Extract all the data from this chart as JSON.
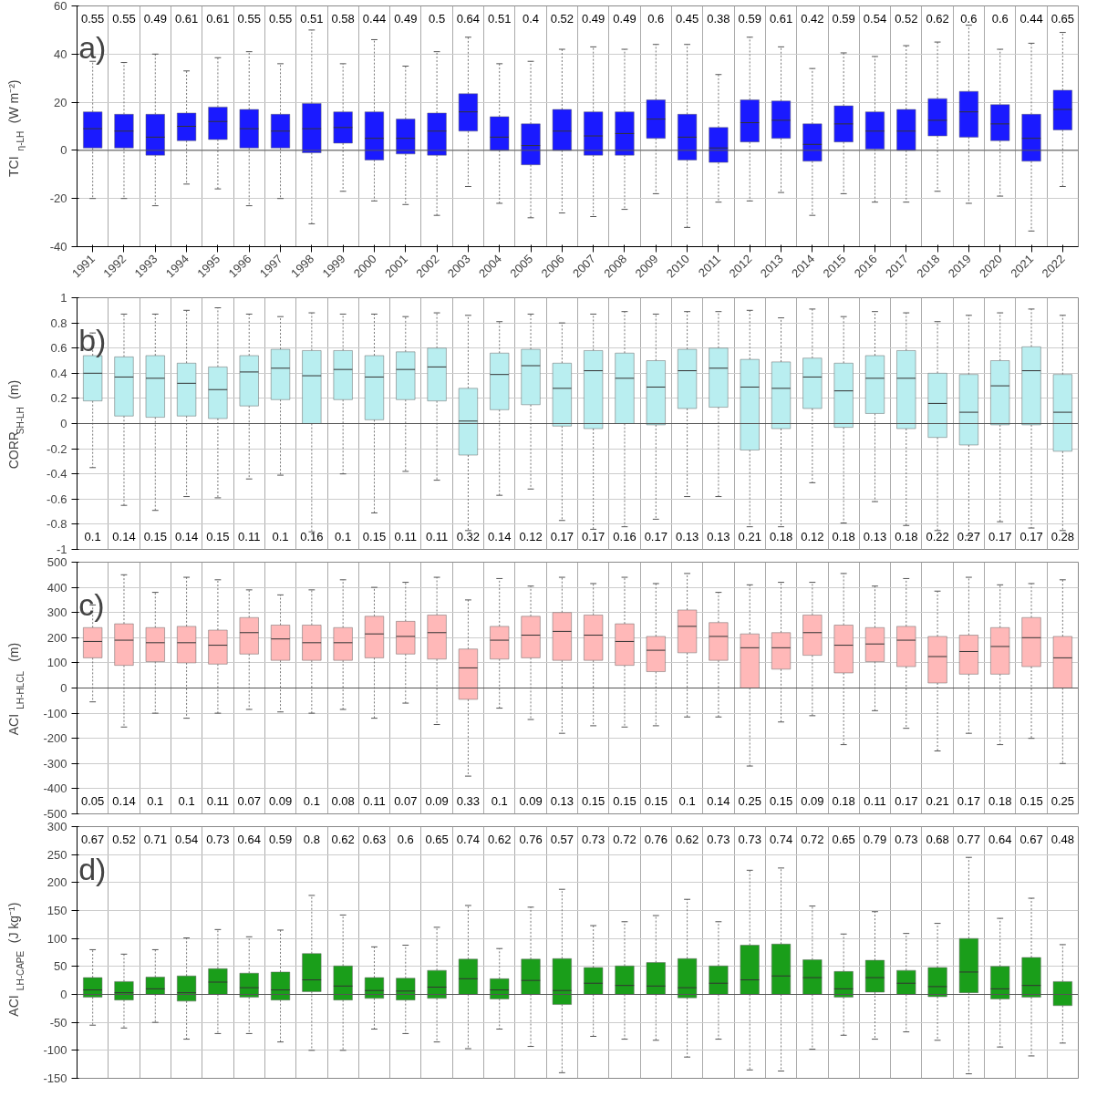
{
  "chart_data": [
    {
      "type": "box",
      "title": "a)",
      "ylabel": "TCI$_{η-LH}$ (W m⁻²)",
      "categories": [
        "1991",
        "1992",
        "1993",
        "1994",
        "1995",
        "1996",
        "1997",
        "1998",
        "1999",
        "2000",
        "2001",
        "2002",
        "2003",
        "2004",
        "2005",
        "2006",
        "2007",
        "2008",
        "2009",
        "2010",
        "2011",
        "2012",
        "2013",
        "2014",
        "2015",
        "2016",
        "2017",
        "2018",
        "2019",
        "2020",
        "2021",
        "2022"
      ],
      "ylim": [
        -40,
        60
      ],
      "yticks": [
        -40,
        -20,
        0,
        20,
        40,
        60
      ],
      "grid": true,
      "ref_lines": [
        {
          "axis": "y",
          "value": 0,
          "color": "#555555"
        }
      ],
      "series": [
        {
          "color": "#1a1aff",
          "boxes": [
            {
              "low": -20,
              "q1": 1,
              "median": 9,
              "q3": 16,
              "high": 37
            },
            {
              "low": -20,
              "q1": 1,
              "median": 8,
              "q3": 15,
              "high": 36.5
            },
            {
              "low": -23,
              "q1": -2,
              "median": 5.5,
              "q3": 15,
              "high": 40
            },
            {
              "low": -14,
              "q1": 4,
              "median": 10,
              "q3": 15.5,
              "high": 33
            },
            {
              "low": -16,
              "q1": 4.5,
              "median": 12,
              "q3": 18,
              "high": 38.5
            },
            {
              "low": -23,
              "q1": 1,
              "median": 9,
              "q3": 17,
              "high": 41
            },
            {
              "low": -20,
              "q1": 1,
              "median": 8,
              "q3": 15,
              "high": 36
            },
            {
              "low": -30.5,
              "q1": -1,
              "median": 9,
              "q3": 19.5,
              "high": 50
            },
            {
              "low": -17,
              "q1": 3,
              "median": 9.5,
              "q3": 16,
              "high": 36
            },
            {
              "low": -21,
              "q1": -4,
              "median": 5,
              "q3": 16,
              "high": 46
            },
            {
              "low": -22.5,
              "q1": -1.5,
              "median": 5,
              "q3": 13,
              "high": 35
            },
            {
              "low": -27,
              "q1": -2,
              "median": 8,
              "q3": 15.5,
              "high": 41
            },
            {
              "low": -15,
              "q1": 8,
              "median": 16,
              "q3": 23.5,
              "high": 47
            },
            {
              "low": -22,
              "q1": 0,
              "median": 5.5,
              "q3": 14,
              "high": 36
            },
            {
              "low": -28,
              "q1": -6,
              "median": 2,
              "q3": 11,
              "high": 37
            },
            {
              "low": -26,
              "q1": 0,
              "median": 8,
              "q3": 17,
              "high": 42
            },
            {
              "low": -27.5,
              "q1": -2,
              "median": 6,
              "q3": 16,
              "high": 43
            },
            {
              "low": -24.5,
              "q1": -2,
              "median": 7,
              "q3": 16,
              "high": 42
            },
            {
              "low": -18,
              "q1": 5,
              "median": 13,
              "q3": 21,
              "high": 44
            },
            {
              "low": -32,
              "q1": -4,
              "median": 5.5,
              "q3": 15,
              "high": 44
            },
            {
              "low": -21.5,
              "q1": -5,
              "median": 1,
              "q3": 9.5,
              "high": 31.5
            },
            {
              "low": -21,
              "q1": 3.5,
              "median": 11.5,
              "q3": 21,
              "high": 47
            },
            {
              "low": -17.5,
              "q1": 5,
              "median": 12.5,
              "q3": 20.5,
              "high": 43
            },
            {
              "low": -27,
              "q1": -4.5,
              "median": 2.5,
              "q3": 11,
              "high": 34
            },
            {
              "low": -18,
              "q1": 3.5,
              "median": 11,
              "q3": 18.5,
              "high": 40.5
            },
            {
              "low": -21.5,
              "q1": 0.5,
              "median": 8,
              "q3": 16,
              "high": 39
            },
            {
              "low": -21.5,
              "q1": 0,
              "median": 8,
              "q3": 17,
              "high": 43.5
            },
            {
              "low": -17,
              "q1": 6,
              "median": 12.5,
              "q3": 21.5,
              "high": 45
            },
            {
              "low": -22,
              "q1": 5.5,
              "median": 16,
              "q3": 24.5,
              "high": 52
            },
            {
              "low": -19,
              "q1": 4,
              "median": 11,
              "q3": 19,
              "high": 42
            },
            {
              "low": -33.5,
              "q1": -4.5,
              "median": 5,
              "q3": 15,
              "high": 44.5
            },
            {
              "low": -15,
              "q1": 8.5,
              "median": 17,
              "q3": 25,
              "high": 49
            }
          ]
        }
      ],
      "annotations": [
        "0.55",
        "0.55",
        "0.49",
        "0.61",
        "0.61",
        "0.55",
        "0.55",
        "0.51",
        "0.58",
        "0.44",
        "0.49",
        "0.5",
        "0.64",
        "0.51",
        "0.4",
        "0.52",
        "0.49",
        "0.49",
        "0.6",
        "0.45",
        "0.38",
        "0.59",
        "0.61",
        "0.42",
        "0.59",
        "0.54",
        "0.52",
        "0.62",
        "0.6",
        "0.6",
        "0.44",
        "0.65"
      ]
    },
    {
      "type": "box",
      "title": "b)",
      "ylabel": "CORR$_{SH-LH}$ (m)",
      "categories": [
        "1991",
        "1992",
        "1993",
        "1994",
        "1995",
        "1996",
        "1997",
        "1998",
        "1999",
        "2000",
        "2001",
        "2002",
        "2003",
        "2004",
        "2005",
        "2006",
        "2007",
        "2008",
        "2009",
        "2010",
        "2011",
        "2012",
        "2013",
        "2014",
        "2015",
        "2016",
        "2017",
        "2018",
        "2019",
        "2020",
        "2021",
        "2022"
      ],
      "ylim": [
        -1,
        1
      ],
      "yticks": [
        -1,
        -0.8,
        -0.6,
        -0.4,
        -0.2,
        0,
        0.2,
        0.4,
        0.6,
        0.8,
        1
      ],
      "grid": true,
      "tick_labels": "y",
      "ref_lines": [
        {
          "axis": "y",
          "value": 0,
          "color": "#555555"
        }
      ],
      "series": [
        {
          "color": "#b9eef0",
          "boxes": [
            {
              "low": -0.35,
              "q1": 0.18,
              "median": 0.4,
              "q3": 0.54,
              "high": 0.72
            },
            {
              "low": -0.65,
              "q1": 0.06,
              "median": 0.37,
              "q3": 0.53,
              "high": 0.87
            },
            {
              "low": -0.69,
              "q1": 0.05,
              "median": 0.36,
              "q3": 0.54,
              "high": 0.87
            },
            {
              "low": -0.58,
              "q1": 0.06,
              "median": 0.32,
              "q3": 0.48,
              "high": 0.9
            },
            {
              "low": -0.59,
              "q1": 0.04,
              "median": 0.27,
              "q3": 0.45,
              "high": 0.92
            },
            {
              "low": -0.44,
              "q1": 0.14,
              "median": 0.41,
              "q3": 0.54,
              "high": 0.87
            },
            {
              "low": -0.41,
              "q1": 0.19,
              "median": 0.44,
              "q3": 0.59,
              "high": 0.85
            },
            {
              "low": -0.86,
              "q1": 0.0,
              "median": 0.38,
              "q3": 0.58,
              "high": 0.88
            },
            {
              "low": -0.4,
              "q1": 0.19,
              "median": 0.43,
              "q3": 0.58,
              "high": 0.87
            },
            {
              "low": -0.71,
              "q1": 0.03,
              "median": 0.37,
              "q3": 0.54,
              "high": 0.87
            },
            {
              "low": -0.38,
              "q1": 0.19,
              "median": 0.43,
              "q3": 0.57,
              "high": 0.85
            },
            {
              "low": -0.45,
              "q1": 0.18,
              "median": 0.45,
              "q3": 0.6,
              "high": 0.88
            },
            {
              "low": -0.85,
              "q1": -0.25,
              "median": 0.02,
              "q3": 0.28,
              "high": 0.86
            },
            {
              "low": -0.57,
              "q1": 0.11,
              "median": 0.39,
              "q3": 0.56,
              "high": 0.81
            },
            {
              "low": -0.52,
              "q1": 0.15,
              "median": 0.46,
              "q3": 0.59,
              "high": 0.87
            },
            {
              "low": -0.77,
              "q1": -0.02,
              "median": 0.28,
              "q3": 0.48,
              "high": 0.8
            },
            {
              "low": -0.84,
              "q1": -0.04,
              "median": 0.42,
              "q3": 0.58,
              "high": 0.87
            },
            {
              "low": -0.82,
              "q1": 0.0,
              "median": 0.36,
              "q3": 0.56,
              "high": 0.89
            },
            {
              "low": -0.76,
              "q1": -0.01,
              "median": 0.29,
              "q3": 0.5,
              "high": 0.87
            },
            {
              "low": -0.58,
              "q1": 0.12,
              "median": 0.42,
              "q3": 0.59,
              "high": 0.89
            },
            {
              "low": -0.58,
              "q1": 0.13,
              "median": 0.44,
              "q3": 0.6,
              "high": 0.89
            },
            {
              "low": -0.82,
              "q1": -0.21,
              "median": 0.29,
              "q3": 0.51,
              "high": 0.9
            },
            {
              "low": -0.82,
              "q1": -0.04,
              "median": 0.28,
              "q3": 0.49,
              "high": 0.84
            },
            {
              "low": -0.47,
              "q1": 0.12,
              "median": 0.37,
              "q3": 0.52,
              "high": 0.91
            },
            {
              "low": -0.79,
              "q1": -0.03,
              "median": 0.26,
              "q3": 0.48,
              "high": 0.85
            },
            {
              "low": -0.62,
              "q1": 0.08,
              "median": 0.36,
              "q3": 0.54,
              "high": 0.89
            },
            {
              "low": -0.81,
              "q1": -0.04,
              "median": 0.36,
              "q3": 0.58,
              "high": 0.88
            },
            {
              "low": -0.85,
              "q1": -0.11,
              "median": 0.16,
              "q3": 0.4,
              "high": 0.81
            },
            {
              "low": -0.89,
              "q1": -0.17,
              "median": 0.09,
              "q3": 0.39,
              "high": 0.86
            },
            {
              "low": -0.78,
              "q1": -0.01,
              "median": 0.3,
              "q3": 0.5,
              "high": 0.88
            },
            {
              "low": -0.83,
              "q1": -0.01,
              "median": 0.42,
              "q3": 0.61,
              "high": 0.91
            },
            {
              "low": -0.85,
              "q1": -0.22,
              "median": 0.09,
              "q3": 0.39,
              "high": 0.86
            }
          ]
        }
      ],
      "annotations": [
        "0.1",
        "0.14",
        "0.15",
        "0.14",
        "0.15",
        "0.11",
        "0.1",
        "0.16",
        "0.1",
        "0.15",
        "0.11",
        "0.11",
        "0.32",
        "0.14",
        "0.12",
        "0.17",
        "0.17",
        "0.16",
        "0.17",
        "0.13",
        "0.13",
        "0.21",
        "0.18",
        "0.12",
        "0.18",
        "0.13",
        "0.18",
        "0.22",
        "0.27",
        "0.17",
        "0.17",
        "0.28"
      ]
    },
    {
      "type": "box",
      "title": "c)",
      "ylabel": "ACI$_{LH-HLCL}$ (m)",
      "categories": [
        "1991",
        "1992",
        "1993",
        "1994",
        "1995",
        "1996",
        "1997",
        "1998",
        "1999",
        "2000",
        "2001",
        "2002",
        "2003",
        "2004",
        "2005",
        "2006",
        "2007",
        "2008",
        "2009",
        "2010",
        "2011",
        "2012",
        "2013",
        "2014",
        "2015",
        "2016",
        "2017",
        "2018",
        "2019",
        "2020",
        "2021",
        "2022"
      ],
      "ylim": [
        -500,
        500
      ],
      "yticks": [
        -500,
        -400,
        -300,
        -200,
        -100,
        0,
        100,
        200,
        300,
        400,
        500
      ],
      "grid": true,
      "tick_labels": "y",
      "ref_lines": [
        {
          "axis": "y",
          "value": 0,
          "color": "#555555"
        }
      ],
      "series": [
        {
          "color": "#ffb8b8",
          "boxes": [
            {
              "low": -55,
              "q1": 120,
              "median": 185,
              "q3": 240,
              "high": 330
            },
            {
              "low": -155,
              "q1": 90,
              "median": 190,
              "q3": 255,
              "high": 450
            },
            {
              "low": -100,
              "q1": 105,
              "median": 180,
              "q3": 240,
              "high": 380
            },
            {
              "low": -120,
              "q1": 100,
              "median": 180,
              "q3": 245,
              "high": 440
            },
            {
              "low": -100,
              "q1": 95,
              "median": 170,
              "q3": 230,
              "high": 430
            },
            {
              "low": -85,
              "q1": 135,
              "median": 220,
              "q3": 280,
              "high": 390
            },
            {
              "low": -95,
              "q1": 110,
              "median": 195,
              "q3": 250,
              "high": 370
            },
            {
              "low": -100,
              "q1": 110,
              "median": 180,
              "q3": 250,
              "high": 390
            },
            {
              "low": -85,
              "q1": 110,
              "median": 180,
              "q3": 240,
              "high": 430
            },
            {
              "low": -120,
              "q1": 120,
              "median": 215,
              "q3": 285,
              "high": 400
            },
            {
              "low": -60,
              "q1": 135,
              "median": 205,
              "q3": 265,
              "high": 420
            },
            {
              "low": -145,
              "q1": 115,
              "median": 220,
              "q3": 290,
              "high": 440
            },
            {
              "low": -350,
              "q1": -45,
              "median": 80,
              "q3": 155,
              "high": 350
            },
            {
              "low": -80,
              "q1": 115,
              "median": 190,
              "q3": 245,
              "high": 435
            },
            {
              "low": -125,
              "q1": 120,
              "median": 210,
              "q3": 285,
              "high": 405
            },
            {
              "low": -180,
              "q1": 110,
              "median": 225,
              "q3": 300,
              "high": 440
            },
            {
              "low": -150,
              "q1": 110,
              "median": 210,
              "q3": 290,
              "high": 415
            },
            {
              "low": -155,
              "q1": 90,
              "median": 185,
              "q3": 255,
              "high": 440
            },
            {
              "low": -150,
              "q1": 65,
              "median": 150,
              "q3": 205,
              "high": 415
            },
            {
              "low": -115,
              "q1": 140,
              "median": 245,
              "q3": 310,
              "high": 455
            },
            {
              "low": -115,
              "q1": 110,
              "median": 205,
              "q3": 260,
              "high": 380
            },
            {
              "low": -310,
              "q1": 0,
              "median": 160,
              "q3": 215,
              "high": 410
            },
            {
              "low": -135,
              "q1": 75,
              "median": 160,
              "q3": 220,
              "high": 420
            },
            {
              "low": -110,
              "q1": 130,
              "median": 220,
              "q3": 290,
              "high": 420
            },
            {
              "low": -225,
              "q1": 60,
              "median": 170,
              "q3": 250,
              "high": 455
            },
            {
              "low": -90,
              "q1": 105,
              "median": 175,
              "q3": 240,
              "high": 405
            },
            {
              "low": -160,
              "q1": 85,
              "median": 190,
              "q3": 245,
              "high": 435
            },
            {
              "low": -250,
              "q1": 20,
              "median": 125,
              "q3": 205,
              "high": 385
            },
            {
              "low": -180,
              "q1": 55,
              "median": 145,
              "q3": 210,
              "high": 440
            },
            {
              "low": -225,
              "q1": 55,
              "median": 165,
              "q3": 240,
              "high": 410
            },
            {
              "low": -200,
              "q1": 85,
              "median": 200,
              "q3": 280,
              "high": 415
            },
            {
              "low": -300,
              "q1": 0,
              "median": 120,
              "q3": 205,
              "high": 430
            }
          ]
        }
      ],
      "annotations": [
        "0.05",
        "0.14",
        "0.1",
        "0.1",
        "0.11",
        "0.07",
        "0.09",
        "0.1",
        "0.08",
        "0.11",
        "0.07",
        "0.09",
        "0.33",
        "0.1",
        "0.09",
        "0.13",
        "0.15",
        "0.15",
        "0.15",
        "0.1",
        "0.14",
        "0.25",
        "0.15",
        "0.09",
        "0.18",
        "0.11",
        "0.17",
        "0.21",
        "0.17",
        "0.18",
        "0.15",
        "0.25"
      ]
    },
    {
      "type": "box",
      "title": "d)",
      "ylabel": "ACI$_{LH-CAPE}$ (J kg⁻¹)",
      "categories": [
        "1991",
        "1992",
        "1993",
        "1994",
        "1995",
        "1996",
        "1997",
        "1998",
        "1999",
        "2000",
        "2001",
        "2002",
        "2003",
        "2004",
        "2005",
        "2006",
        "2007",
        "2008",
        "2009",
        "2010",
        "2011",
        "2012",
        "2013",
        "2014",
        "2015",
        "2016",
        "2017",
        "2018",
        "2019",
        "2020",
        "2021",
        "2022"
      ],
      "ylim": [
        -150,
        300
      ],
      "yticks": [
        -150,
        -100,
        -50,
        0,
        50,
        100,
        150,
        200,
        250,
        300
      ],
      "grid": true,
      "tick_labels": "y",
      "ref_lines": [
        {
          "axis": "y",
          "value": 0,
          "color": "#555555"
        }
      ],
      "series": [
        {
          "color": "#1a9e1a",
          "boxes": [
            {
              "low": -55,
              "q1": -5,
              "median": 8,
              "q3": 30,
              "high": 80
            },
            {
              "low": -60,
              "q1": -10,
              "median": 3,
              "q3": 23,
              "high": 72
            },
            {
              "low": -50,
              "q1": 0,
              "median": 10,
              "q3": 31,
              "high": 80
            },
            {
              "low": -80,
              "q1": -12,
              "median": 3,
              "q3": 33,
              "high": 101
            },
            {
              "low": -70,
              "q1": 0,
              "median": 22,
              "q3": 46,
              "high": 116
            },
            {
              "low": -70,
              "q1": -5,
              "median": 12,
              "q3": 38,
              "high": 103
            },
            {
              "low": -85,
              "q1": -10,
              "median": 8,
              "q3": 40,
              "high": 115
            },
            {
              "low": -100,
              "q1": 5,
              "median": 26,
              "q3": 73,
              "high": 177
            },
            {
              "low": -100,
              "q1": -10,
              "median": 15,
              "q3": 51,
              "high": 142
            },
            {
              "low": -62,
              "q1": -7,
              "median": 7,
              "q3": 30,
              "high": 85
            },
            {
              "low": -70,
              "q1": -10,
              "median": 6,
              "q3": 29,
              "high": 88
            },
            {
              "low": -85,
              "q1": -7,
              "median": 13,
              "q3": 43,
              "high": 120
            },
            {
              "low": -97,
              "q1": 0,
              "median": 28,
              "q3": 63,
              "high": 159
            },
            {
              "low": -62,
              "q1": -8,
              "median": 8,
              "q3": 28,
              "high": 82
            },
            {
              "low": -93,
              "q1": 0,
              "median": 25,
              "q3": 63,
              "high": 156
            },
            {
              "low": -140,
              "q1": -18,
              "median": 7,
              "q3": 64,
              "high": 188
            },
            {
              "low": -75,
              "q1": 0,
              "median": 20,
              "q3": 48,
              "high": 123
            },
            {
              "low": -80,
              "q1": 0,
              "median": 16,
              "q3": 51,
              "high": 130
            },
            {
              "low": -82,
              "q1": 0,
              "median": 15,
              "q3": 57,
              "high": 141
            },
            {
              "low": -112,
              "q1": -6,
              "median": 12,
              "q3": 64,
              "high": 170
            },
            {
              "low": -80,
              "q1": 0,
              "median": 20,
              "q3": 51,
              "high": 130
            },
            {
              "low": -135,
              "q1": 0,
              "median": 26,
              "q3": 88,
              "high": 222
            },
            {
              "low": -137,
              "q1": 0,
              "median": 33,
              "q3": 90,
              "high": 226
            },
            {
              "low": -98,
              "q1": 0,
              "median": 30,
              "q3": 62,
              "high": 158
            },
            {
              "low": -73,
              "q1": -5,
              "median": 10,
              "q3": 41,
              "high": 108
            },
            {
              "low": -80,
              "q1": 4,
              "median": 30,
              "q3": 61,
              "high": 148
            },
            {
              "low": -67,
              "q1": 0,
              "median": 20,
              "q3": 43,
              "high": 109
            },
            {
              "low": -82,
              "q1": -4,
              "median": 14,
              "q3": 48,
              "high": 127
            },
            {
              "low": -142,
              "q1": 3,
              "median": 40,
              "q3": 100,
              "high": 245
            },
            {
              "low": -94,
              "q1": -8,
              "median": 10,
              "q3": 50,
              "high": 136
            },
            {
              "low": -110,
              "q1": -5,
              "median": 16,
              "q3": 66,
              "high": 172
            },
            {
              "low": -87,
              "q1": -20,
              "median": 0,
              "q3": 23,
              "high": 89
            }
          ]
        }
      ],
      "annotations": [
        "0.67",
        "0.52",
        "0.71",
        "0.54",
        "0.73",
        "0.64",
        "0.59",
        "0.8",
        "0.62",
        "0.63",
        "0.6",
        "0.65",
        "0.74",
        "0.62",
        "0.76",
        "0.57",
        "0.73",
        "0.72",
        "0.76",
        "0.62",
        "0.73",
        "0.73",
        "0.74",
        "0.72",
        "0.65",
        "0.79",
        "0.73",
        "0.68",
        "0.77",
        "0.64",
        "0.67",
        "0.48"
      ]
    }
  ]
}
